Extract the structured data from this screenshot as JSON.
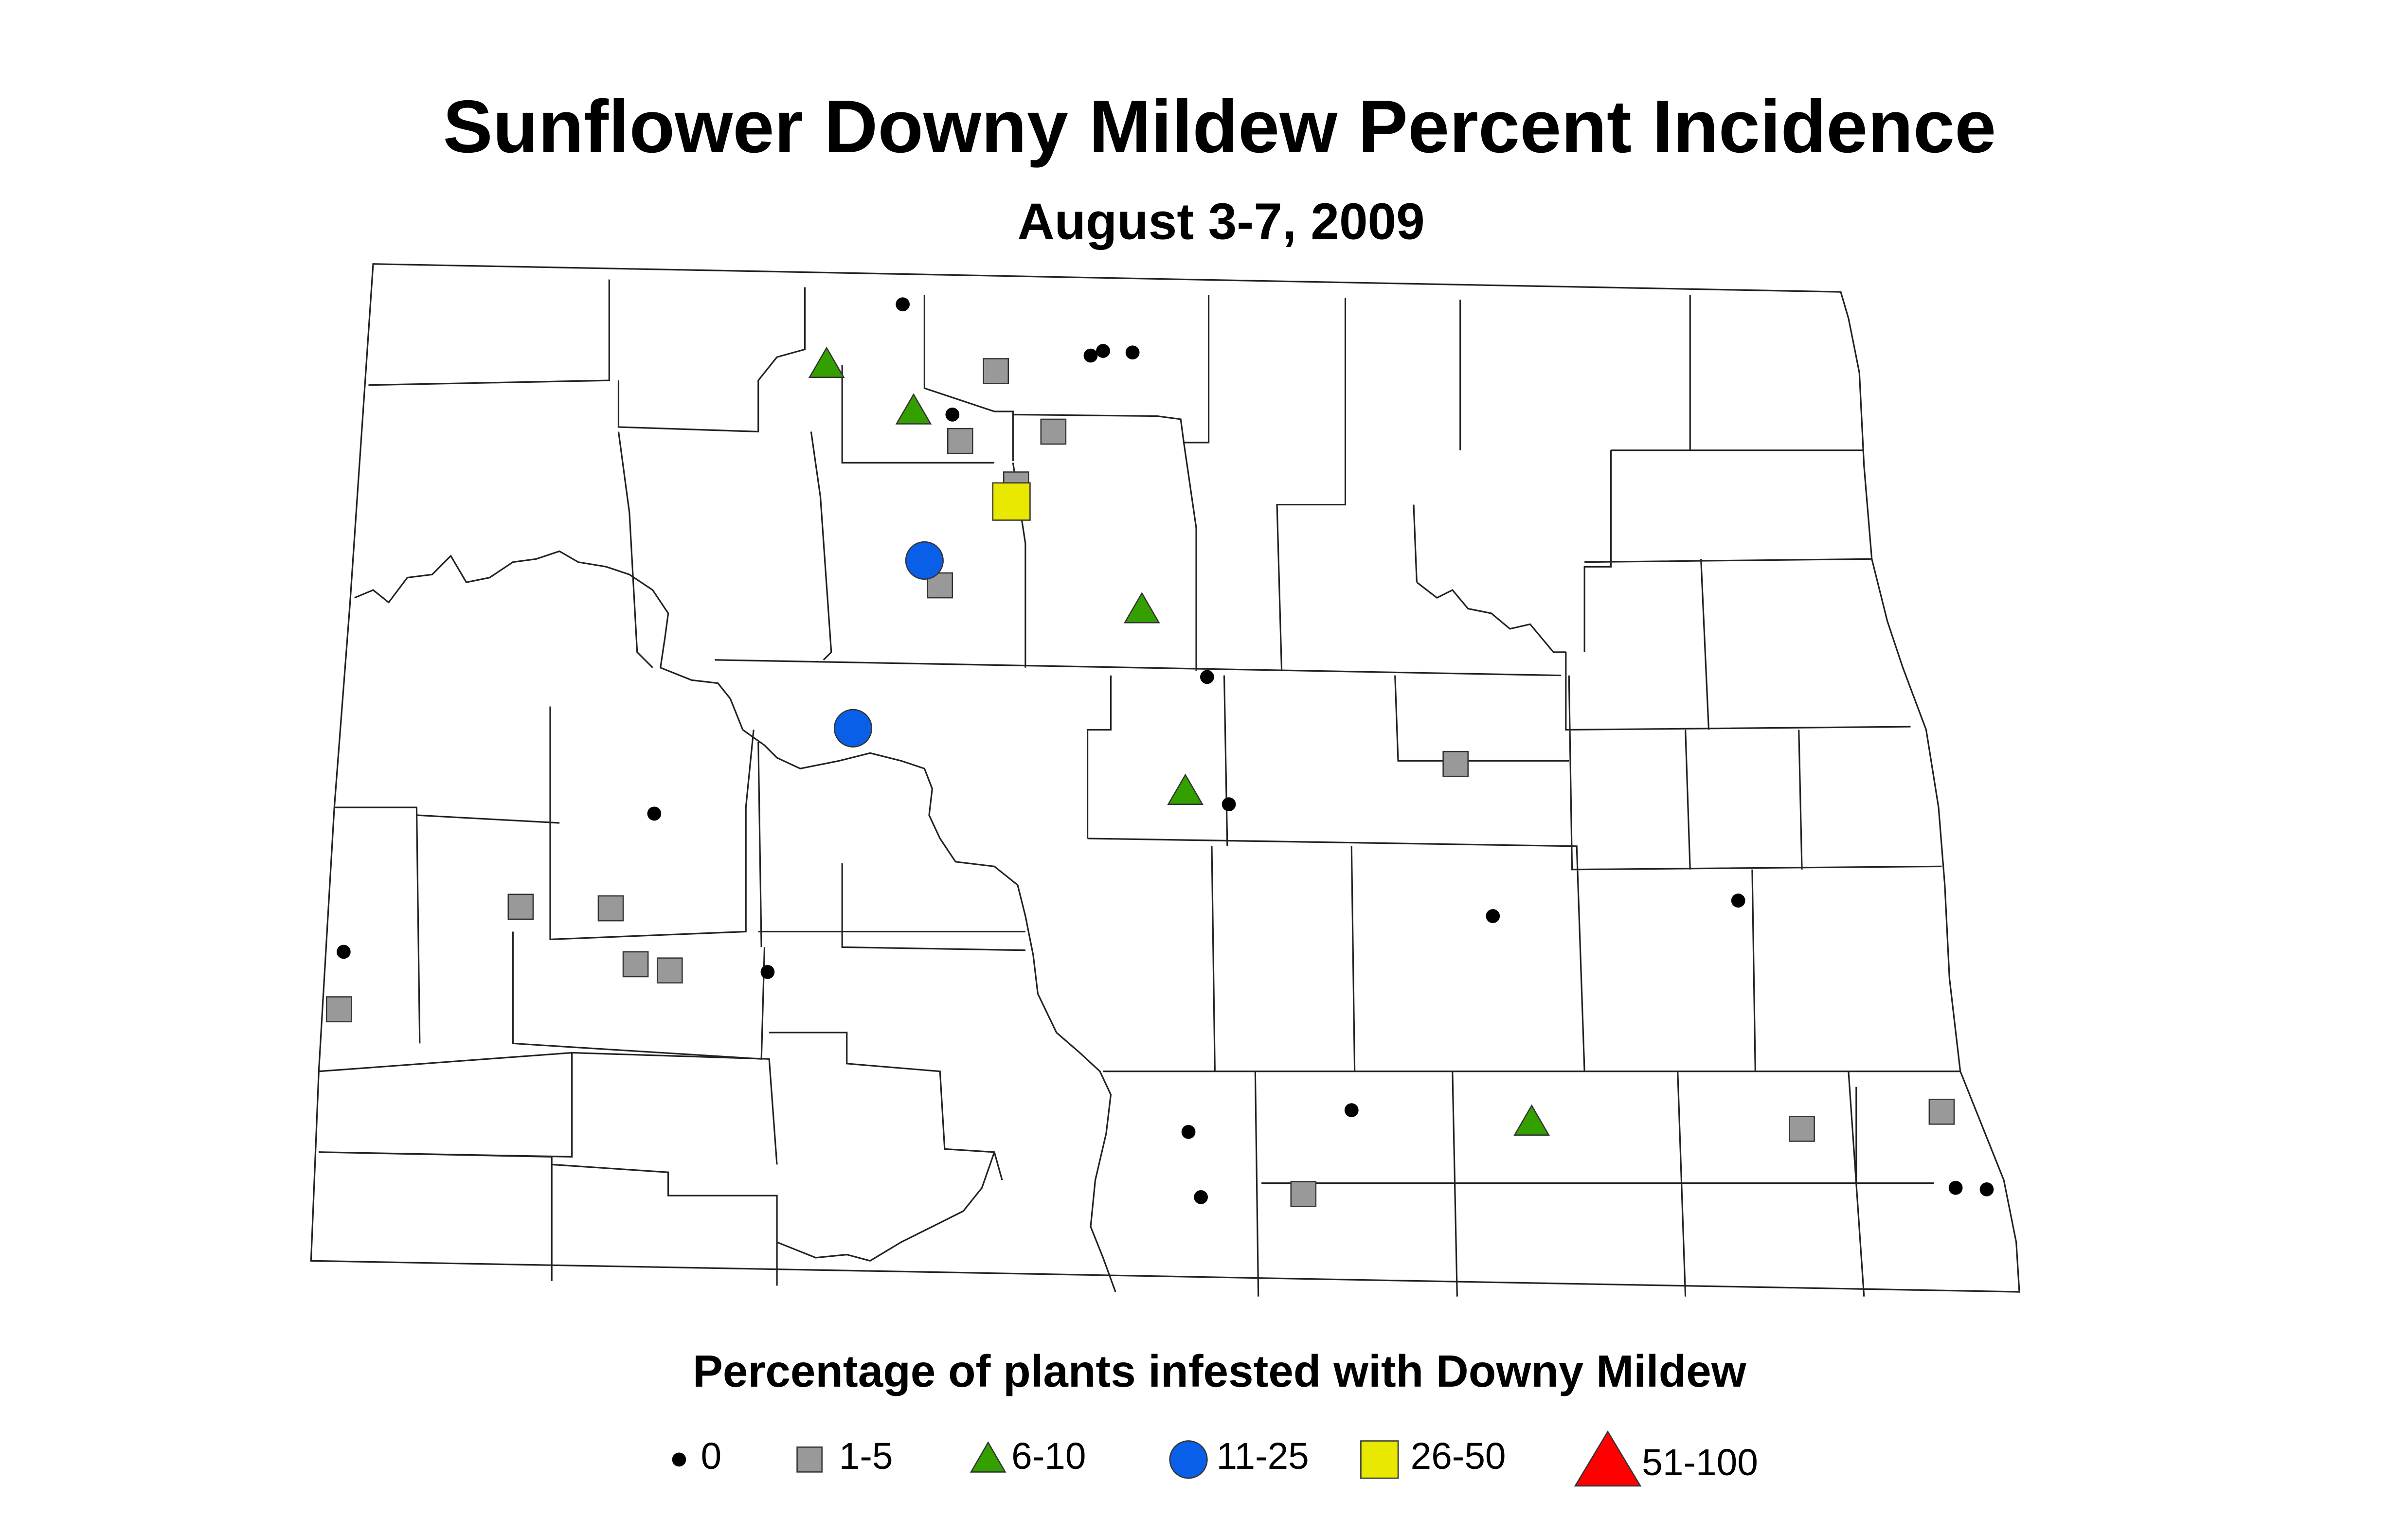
{
  "title": "Sunflower Downy Mildew Percent Incidence",
  "subtitle": "August 3-7, 2009",
  "legend": {
    "title": "Percentage of plants infested with Downy Mildew",
    "items": [
      {
        "label": "0",
        "color": "#000000"
      },
      {
        "label": "1-5",
        "color": "#999999"
      },
      {
        "label": "6-10",
        "color": "#33a000"
      },
      {
        "label": "11-25",
        "color": "#0a5fe8"
      },
      {
        "label": "26-50",
        "color": "#e8e800"
      },
      {
        "label": "51-100",
        "color": "#ff0000"
      }
    ]
  }
}
